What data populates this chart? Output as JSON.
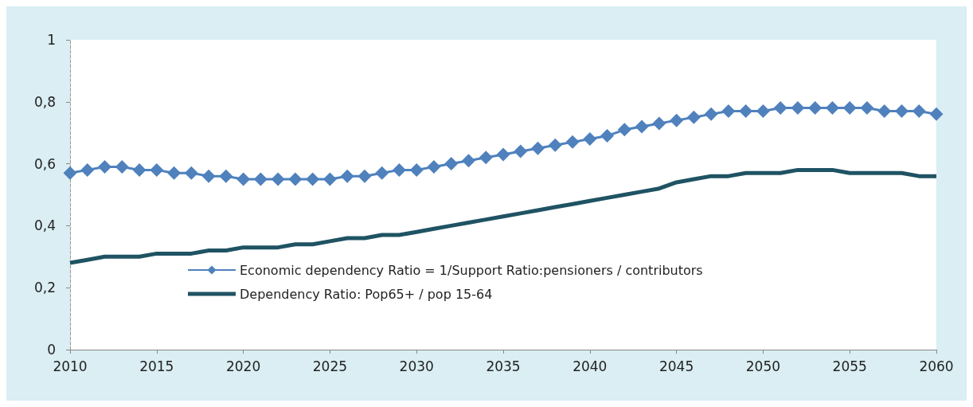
{
  "chart_data": {
    "type": "line",
    "x": [
      2010,
      2011,
      2012,
      2013,
      2014,
      2015,
      2016,
      2017,
      2018,
      2019,
      2020,
      2021,
      2022,
      2023,
      2024,
      2025,
      2026,
      2027,
      2028,
      2029,
      2030,
      2031,
      2032,
      2033,
      2034,
      2035,
      2036,
      2037,
      2038,
      2039,
      2040,
      2041,
      2042,
      2043,
      2044,
      2045,
      2046,
      2047,
      2048,
      2049,
      2050,
      2051,
      2052,
      2053,
      2054,
      2055,
      2056,
      2057,
      2058,
      2059,
      2060
    ],
    "series": [
      {
        "name": "Economic dependency Ratio = 1/Support Ratio:pensioners / contributors",
        "color": "#4f81bd",
        "marker": "diamond",
        "values": [
          0.57,
          0.58,
          0.59,
          0.59,
          0.58,
          0.58,
          0.57,
          0.57,
          0.56,
          0.56,
          0.55,
          0.55,
          0.55,
          0.55,
          0.55,
          0.55,
          0.56,
          0.56,
          0.57,
          0.58,
          0.58,
          0.59,
          0.6,
          0.61,
          0.62,
          0.63,
          0.64,
          0.65,
          0.66,
          0.67,
          0.68,
          0.69,
          0.71,
          0.72,
          0.73,
          0.74,
          0.75,
          0.76,
          0.77,
          0.77,
          0.77,
          0.78,
          0.78,
          0.78,
          0.78,
          0.78,
          0.78,
          0.77,
          0.77,
          0.77,
          0.76
        ]
      },
      {
        "name": "Dependency Ratio: Pop65+ / pop 15-64",
        "color": "#1f5363",
        "marker": "none",
        "values": [
          0.28,
          0.29,
          0.3,
          0.3,
          0.3,
          0.31,
          0.31,
          0.31,
          0.32,
          0.32,
          0.33,
          0.33,
          0.33,
          0.34,
          0.34,
          0.35,
          0.36,
          0.36,
          0.37,
          0.37,
          0.38,
          0.39,
          0.4,
          0.41,
          0.42,
          0.43,
          0.44,
          0.45,
          0.46,
          0.47,
          0.48,
          0.49,
          0.5,
          0.51,
          0.52,
          0.54,
          0.55,
          0.56,
          0.56,
          0.57,
          0.57,
          0.57,
          0.58,
          0.58,
          0.58,
          0.57,
          0.57,
          0.57,
          0.57,
          0.56,
          0.56
        ]
      }
    ],
    "xlim": [
      2010,
      2060
    ],
    "xticks": [
      2010,
      2015,
      2020,
      2025,
      2030,
      2035,
      2040,
      2045,
      2050,
      2055,
      2060
    ],
    "ylim": [
      0,
      1
    ],
    "yticks": [
      0,
      {
        "value": 0.2,
        "label": "0,2"
      },
      {
        "value": 0.4,
        "label": "0,4"
      },
      {
        "value": 0.6,
        "label": "0,6"
      },
      {
        "value": 0.8,
        "label": "0,8"
      },
      1
    ],
    "grid": false,
    "legend": "bottom"
  }
}
